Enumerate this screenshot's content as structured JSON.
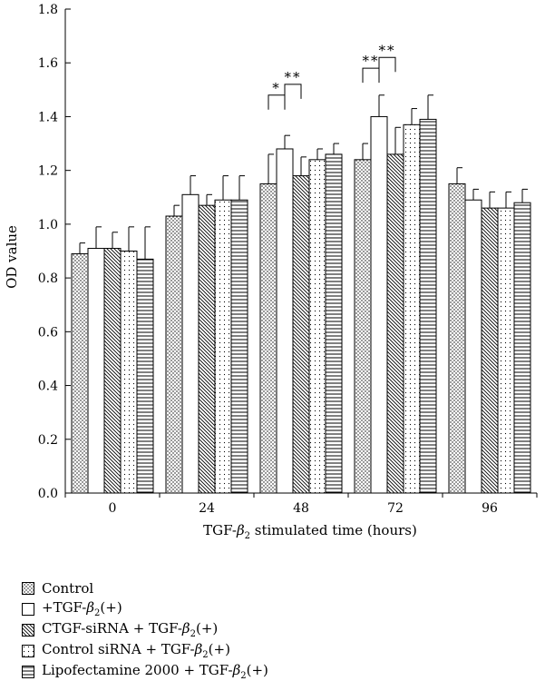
{
  "chart_data": {
    "type": "bar",
    "xlabel": "TGF-β2 stimulated time (hours)",
    "ylabel": "OD value",
    "ylim": [
      0.0,
      1.8
    ],
    "yticks": [
      "0.0",
      "0.2",
      "0.4",
      "0.6",
      "0.8",
      "1.0",
      "1.2",
      "1.4",
      "1.6",
      "1.8"
    ],
    "categories": [
      "0",
      "24",
      "48",
      "72",
      "96"
    ],
    "legend_position": "bottom-left",
    "series": [
      {
        "name": "Control",
        "pattern": "dots",
        "values": [
          0.89,
          1.03,
          1.15,
          1.24,
          1.15
        ],
        "errors": [
          0.04,
          0.04,
          0.11,
          0.06,
          0.06
        ]
      },
      {
        "name": "+TGF-β2(+)",
        "pattern": "open",
        "values": [
          0.91,
          1.11,
          1.28,
          1.4,
          1.09
        ],
        "errors": [
          0.08,
          0.07,
          0.05,
          0.08,
          0.04
        ]
      },
      {
        "name": "CTGF-siRNA + TGF-β2(+)",
        "pattern": "diagonal",
        "values": [
          0.91,
          1.07,
          1.18,
          1.26,
          1.06
        ],
        "errors": [
          0.06,
          0.04,
          0.07,
          0.1,
          0.06
        ]
      },
      {
        "name": "Control siRNA + TGF-β2(+)",
        "pattern": "sparse-dots",
        "values": [
          0.9,
          1.09,
          1.24,
          1.37,
          1.06
        ],
        "errors": [
          0.09,
          0.09,
          0.04,
          0.06,
          0.06
        ]
      },
      {
        "name": "Lipofectamine 2000 + TGF-β2(+)",
        "pattern": "horizontal",
        "values": [
          0.87,
          1.09,
          1.26,
          1.39,
          1.08
        ],
        "errors": [
          0.12,
          0.09,
          0.04,
          0.09,
          0.05
        ]
      }
    ],
    "significance": [
      {
        "category": "48",
        "from_series": 0,
        "to_series": 1,
        "label": "*",
        "level": 1.48
      },
      {
        "category": "48",
        "from_series": 1,
        "to_series": 2,
        "label": "**",
        "level": 1.52
      },
      {
        "category": "72",
        "from_series": 0,
        "to_series": 1,
        "label": "**",
        "level": 1.58
      },
      {
        "category": "72",
        "from_series": 1,
        "to_series": 2,
        "label": "**",
        "level": 1.62
      }
    ]
  }
}
